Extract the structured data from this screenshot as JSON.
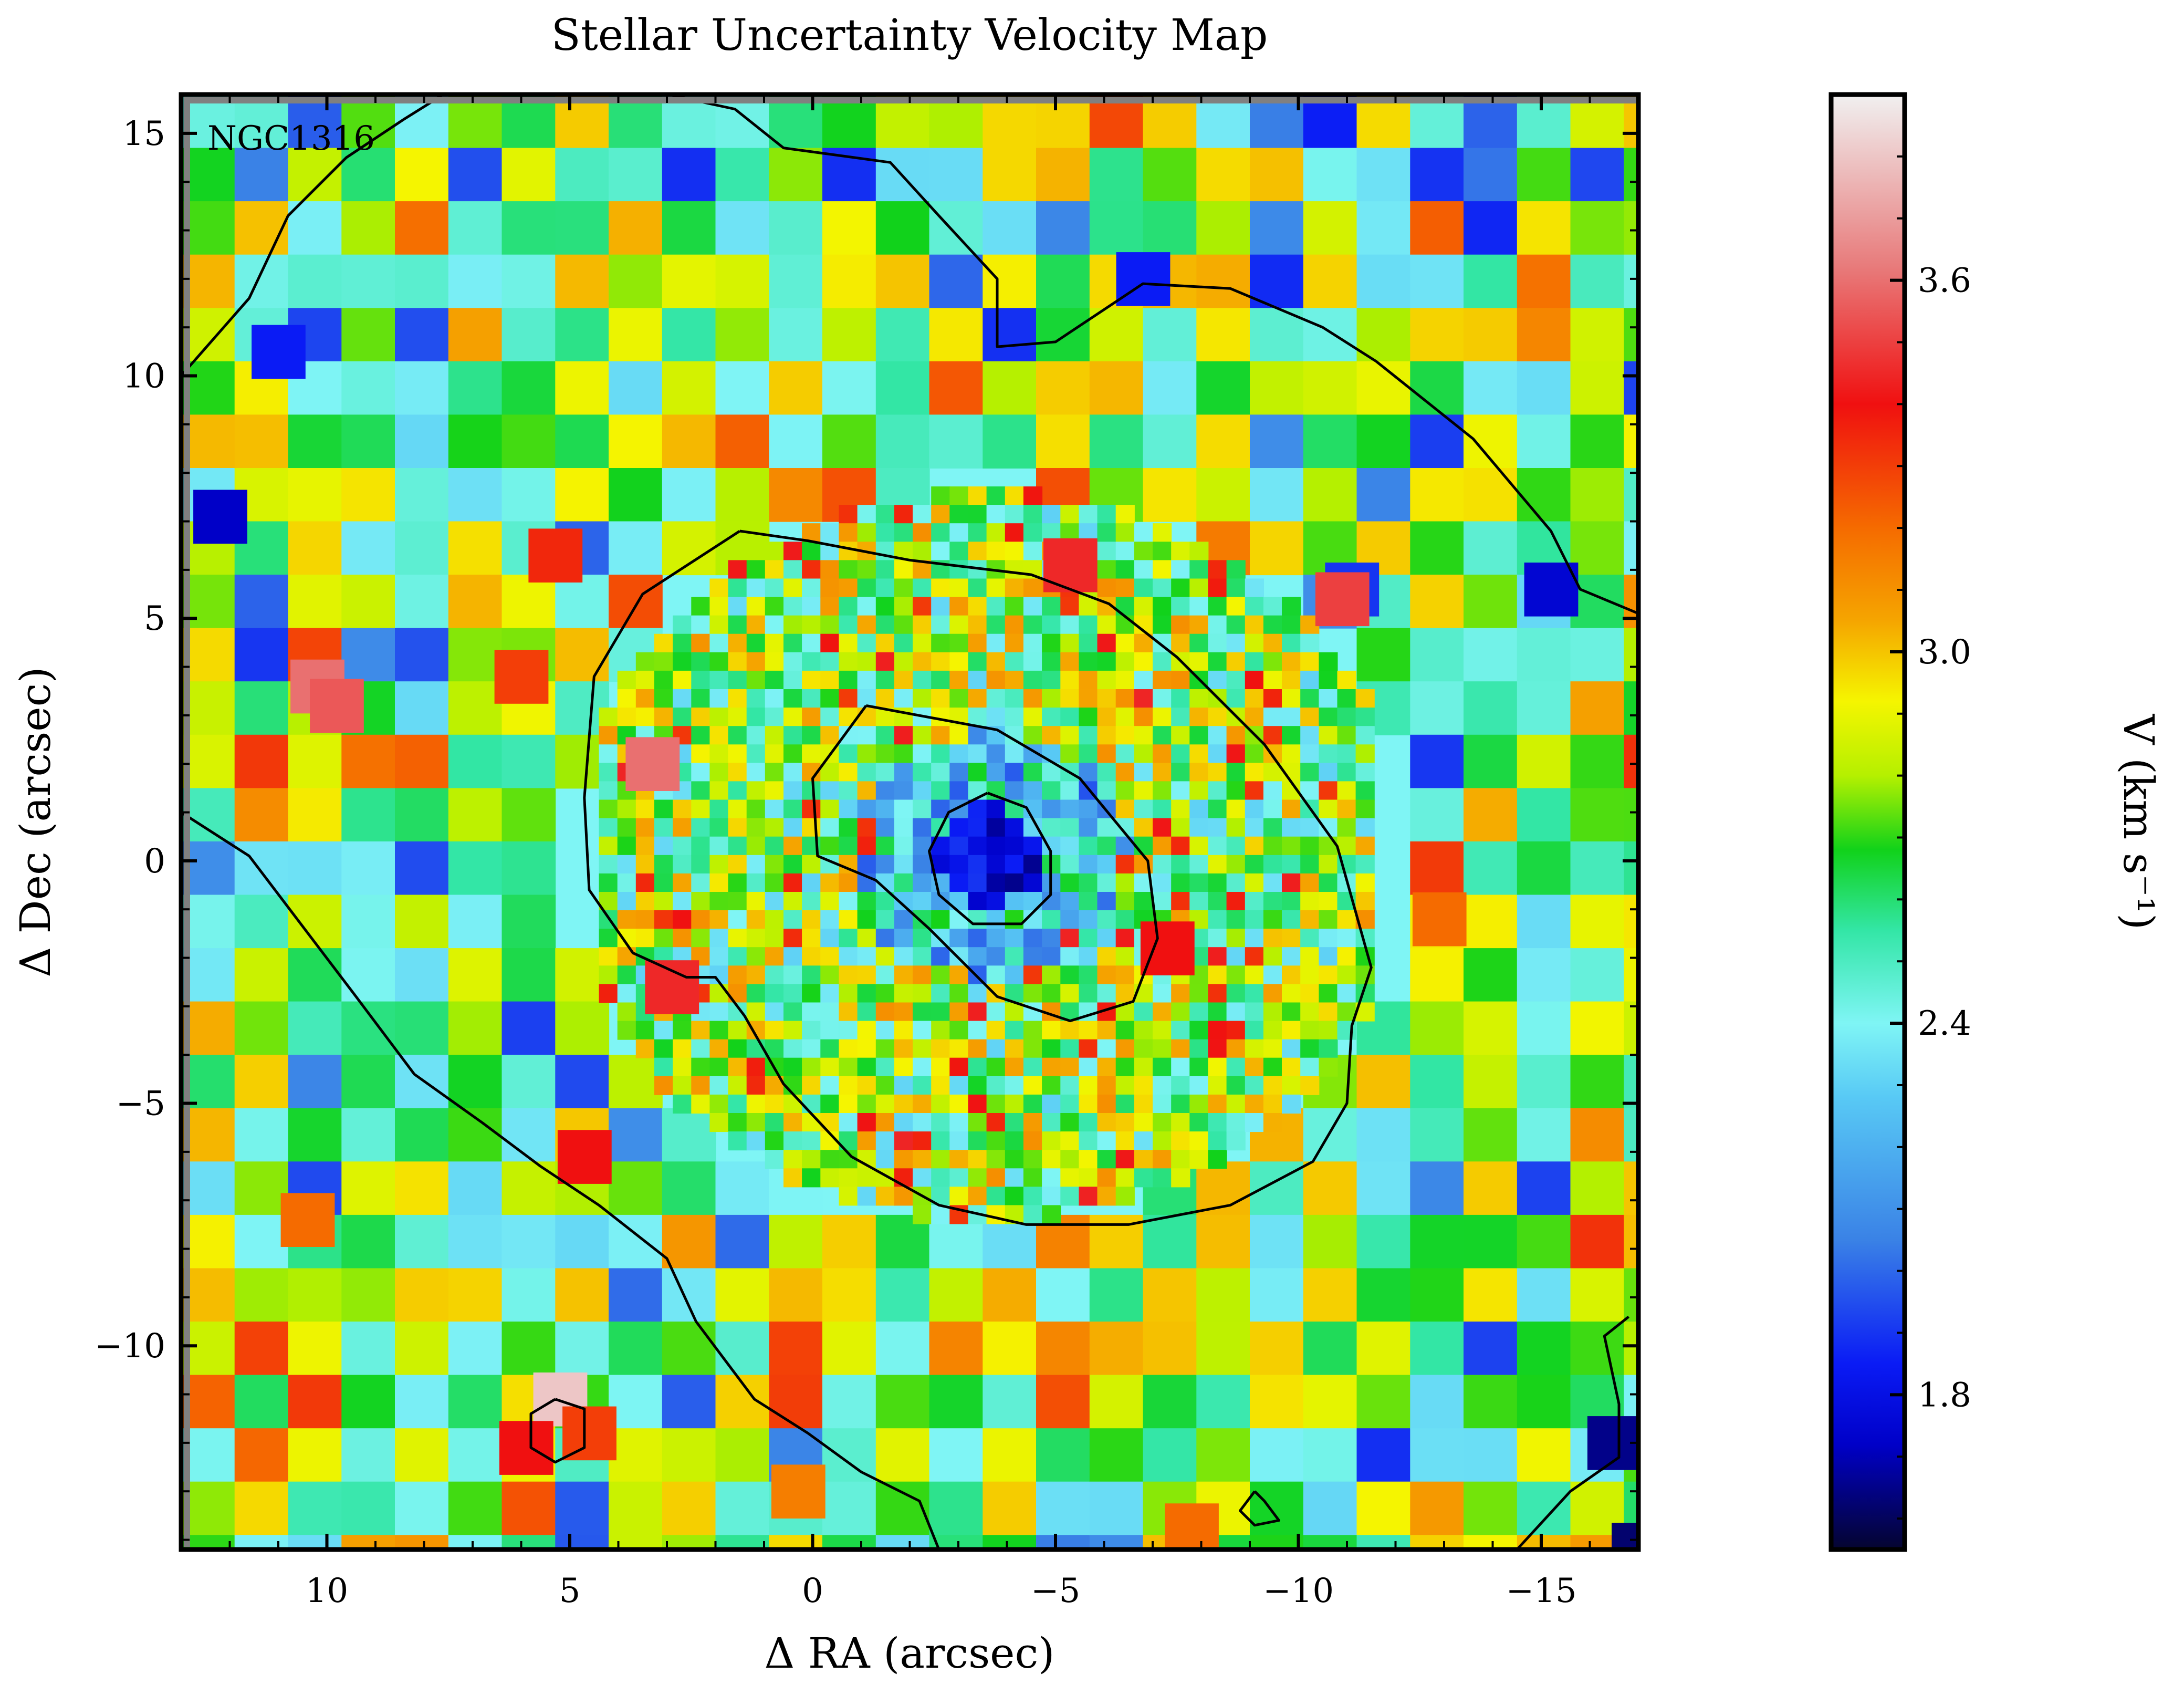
{
  "chart_data": {
    "type": "heatmap",
    "title": "Stellar Uncertainty Velocity Map",
    "xlabel": "Δ RA (arcsec)",
    "ylabel": "Δ Dec (arcsec)",
    "annotation": "NGC1316",
    "xlim": [
      13.0,
      -17.0
    ],
    "ylim": [
      -14.2,
      15.8
    ],
    "x_ticks": [
      10,
      5,
      0,
      -5,
      -10,
      -15
    ],
    "x_tick_labels": [
      "10",
      "5",
      "0",
      "−5",
      "−10",
      "−15"
    ],
    "y_ticks": [
      15,
      10,
      5,
      0,
      -5,
      -10
    ],
    "y_tick_labels": [
      "15",
      "10",
      "5",
      "0",
      "−5",
      "−10"
    ],
    "colorbar": {
      "label": "V (km s⁻¹)",
      "range": [
        1.55,
        3.9
      ],
      "ticks": [
        3.6,
        3.0,
        2.4,
        1.8
      ],
      "tick_labels": [
        "3.6",
        "3.0",
        "2.4",
        "1.8"
      ],
      "colormap": [
        {
          "v": 1.55,
          "color": "#05052f"
        },
        {
          "v": 1.72,
          "color": "#0000c8"
        },
        {
          "v": 1.85,
          "color": "#0a1bf5"
        },
        {
          "v": 2.05,
          "color": "#3a82e6"
        },
        {
          "v": 2.28,
          "color": "#58c9f5"
        },
        {
          "v": 2.4,
          "color": "#7ff5f5"
        },
        {
          "v": 2.55,
          "color": "#33e6a6"
        },
        {
          "v": 2.68,
          "color": "#11d21a"
        },
        {
          "v": 2.8,
          "color": "#b5f000"
        },
        {
          "v": 2.92,
          "color": "#f5f500"
        },
        {
          "v": 3.05,
          "color": "#f5a500"
        },
        {
          "v": 3.2,
          "color": "#f56b00"
        },
        {
          "v": 3.4,
          "color": "#f01010"
        },
        {
          "v": 3.62,
          "color": "#e87a7a"
        },
        {
          "v": 3.9,
          "color": "#f0f0f0"
        }
      ]
    },
    "map": {
      "center": [
        -3.6,
        0.1
      ],
      "noise_seed": 1316,
      "inner_value": 1.8,
      "outer_value": 2.7,
      "notable_bins": [
        {
          "x": -17.0,
          "y": -14.2,
          "v": 1.62
        },
        {
          "x": -16.5,
          "y": -12.0,
          "v": 1.65
        },
        {
          "x": -15.2,
          "y": 5.6,
          "v": 1.75
        },
        {
          "x": 12.2,
          "y": 7.1,
          "v": 1.72
        },
        {
          "x": 11.0,
          "y": 10.5,
          "v": 1.85
        },
        {
          "x": -6.8,
          "y": 12.0,
          "v": 1.85
        },
        {
          "x": -11.1,
          "y": 5.6,
          "v": 1.9
        },
        {
          "x": 5.2,
          "y": -11.1,
          "v": 3.8
        },
        {
          "x": 5.9,
          "y": -12.1,
          "v": 3.4
        },
        {
          "x": 4.6,
          "y": -11.8,
          "v": 3.3
        },
        {
          "x": 5.3,
          "y": 6.3,
          "v": 3.35
        },
        {
          "x": 4.7,
          "y": -6.1,
          "v": 3.4
        },
        {
          "x": 2.9,
          "y": -2.6,
          "v": 3.45
        },
        {
          "x": 10.2,
          "y": 3.6,
          "v": 3.6
        },
        {
          "x": 9.8,
          "y": 3.2,
          "v": 3.55
        },
        {
          "x": 3.3,
          "y": 2.0,
          "v": 3.6
        },
        {
          "x": -10.9,
          "y": 5.4,
          "v": 3.5
        },
        {
          "x": -5.3,
          "y": 6.1,
          "v": 3.45
        },
        {
          "x": -7.3,
          "y": -1.8,
          "v": 3.4
        },
        {
          "x": 6.0,
          "y": 3.8,
          "v": 3.3
        },
        {
          "x": 10.4,
          "y": -7.4,
          "v": 3.2
        },
        {
          "x": -7.8,
          "y": -13.8,
          "v": 3.2
        },
        {
          "x": 0.3,
          "y": -13.0,
          "v": 3.15
        },
        {
          "x": -12.9,
          "y": -1.2,
          "v": 3.2
        }
      ]
    },
    "contours": [
      [
        [
          -3.6,
          1.4
        ],
        [
          -2.8,
          1.0
        ],
        [
          -2.4,
          0.2
        ],
        [
          -2.6,
          -0.7
        ],
        [
          -3.3,
          -1.3
        ],
        [
          -4.3,
          -1.3
        ],
        [
          -4.9,
          -0.7
        ],
        [
          -4.9,
          0.2
        ],
        [
          -4.4,
          1.1
        ],
        [
          -3.6,
          1.4
        ]
      ],
      [
        [
          -1.1,
          3.2
        ],
        [
          -3.8,
          2.7
        ],
        [
          -5.5,
          1.7
        ],
        [
          -6.9,
          0.0
        ],
        [
          -7.1,
          -1.6
        ],
        [
          -6.6,
          -2.9
        ],
        [
          -5.3,
          -3.3
        ],
        [
          -3.8,
          -2.8
        ],
        [
          -2.4,
          -1.4
        ],
        [
          -1.3,
          -0.4
        ],
        [
          -0.1,
          0.1
        ],
        [
          0.0,
          1.7
        ],
        [
          -1.1,
          3.2
        ]
      ],
      [
        [
          1.5,
          6.8
        ],
        [
          0.1,
          6.6
        ],
        [
          -2.0,
          6.2
        ],
        [
          -4.5,
          5.9
        ],
        [
          -6.1,
          5.3
        ],
        [
          -7.5,
          4.2
        ],
        [
          -9.3,
          2.4
        ],
        [
          -10.8,
          0.3
        ],
        [
          -11.5,
          -2.2
        ],
        [
          -11.1,
          -3.4
        ],
        [
          -11.0,
          -5.0
        ],
        [
          -10.3,
          -6.2
        ],
        [
          -8.6,
          -7.1
        ],
        [
          -6.5,
          -7.5
        ],
        [
          -4.4,
          -7.5
        ],
        [
          -2.6,
          -7.1
        ],
        [
          -0.8,
          -6.1
        ],
        [
          0.6,
          -4.6
        ],
        [
          1.4,
          -3.2
        ],
        [
          2.0,
          -2.4
        ],
        [
          2.6,
          -2.4
        ],
        [
          3.7,
          -1.9
        ],
        [
          4.6,
          -0.6
        ],
        [
          4.7,
          1.3
        ],
        [
          4.5,
          3.8
        ],
        [
          3.5,
          5.5
        ],
        [
          1.5,
          6.8
        ]
      ],
      [
        [
          5.5,
          15.8
        ],
        [
          3.0,
          15.8
        ],
        [
          1.6,
          15.5
        ],
        [
          0.6,
          14.7
        ],
        [
          -1.6,
          14.4
        ],
        [
          -2.6,
          13.3
        ],
        [
          -3.8,
          12.0
        ],
        [
          -3.8,
          10.6
        ],
        [
          -5.0,
          10.7
        ],
        [
          -6.8,
          11.9
        ],
        [
          -8.6,
          11.8
        ],
        [
          -10.5,
          11.0
        ],
        [
          -11.6,
          10.3
        ],
        [
          -13.6,
          8.7
        ],
        [
          -15.2,
          6.8
        ],
        [
          -15.8,
          5.6
        ],
        [
          -17.0,
          5.1
        ]
      ],
      [
        [
          13.0,
          1.0
        ],
        [
          11.6,
          0.1
        ],
        [
          9.4,
          -2.8
        ],
        [
          8.2,
          -4.4
        ],
        [
          6.8,
          -5.4
        ],
        [
          5.6,
          -6.3
        ],
        [
          4.4,
          -7.1
        ],
        [
          3.0,
          -8.2
        ],
        [
          2.4,
          -9.5
        ],
        [
          1.2,
          -11.1
        ],
        [
          0.1,
          -11.8
        ],
        [
          -1.0,
          -12.6
        ],
        [
          -2.2,
          -13.2
        ],
        [
          -2.6,
          -14.2
        ]
      ],
      [
        [
          -14.5,
          -14.2
        ],
        [
          -15.6,
          -13.0
        ],
        [
          -16.6,
          -12.3
        ],
        [
          -16.6,
          -11.2
        ],
        [
          -16.3,
          -9.8
        ],
        [
          -16.8,
          -9.4
        ]
      ],
      [
        [
          13.0,
          10.0
        ],
        [
          11.6,
          11.6
        ],
        [
          10.8,
          13.3
        ],
        [
          9.6,
          14.5
        ],
        [
          8.4,
          15.3
        ],
        [
          7.6,
          15.8
        ]
      ],
      [
        [
          5.3,
          -11.1
        ],
        [
          4.7,
          -11.3
        ],
        [
          4.7,
          -12.1
        ],
        [
          5.3,
          -12.4
        ],
        [
          5.8,
          -12.1
        ],
        [
          5.8,
          -11.4
        ],
        [
          5.3,
          -11.1
        ]
      ],
      [
        [
          -9.1,
          -13.0
        ],
        [
          -9.3,
          -13.2
        ],
        [
          -9.6,
          -13.6
        ],
        [
          -9.1,
          -13.7
        ],
        [
          -8.8,
          -13.4
        ],
        [
          -9.1,
          -13.0
        ]
      ]
    ]
  }
}
